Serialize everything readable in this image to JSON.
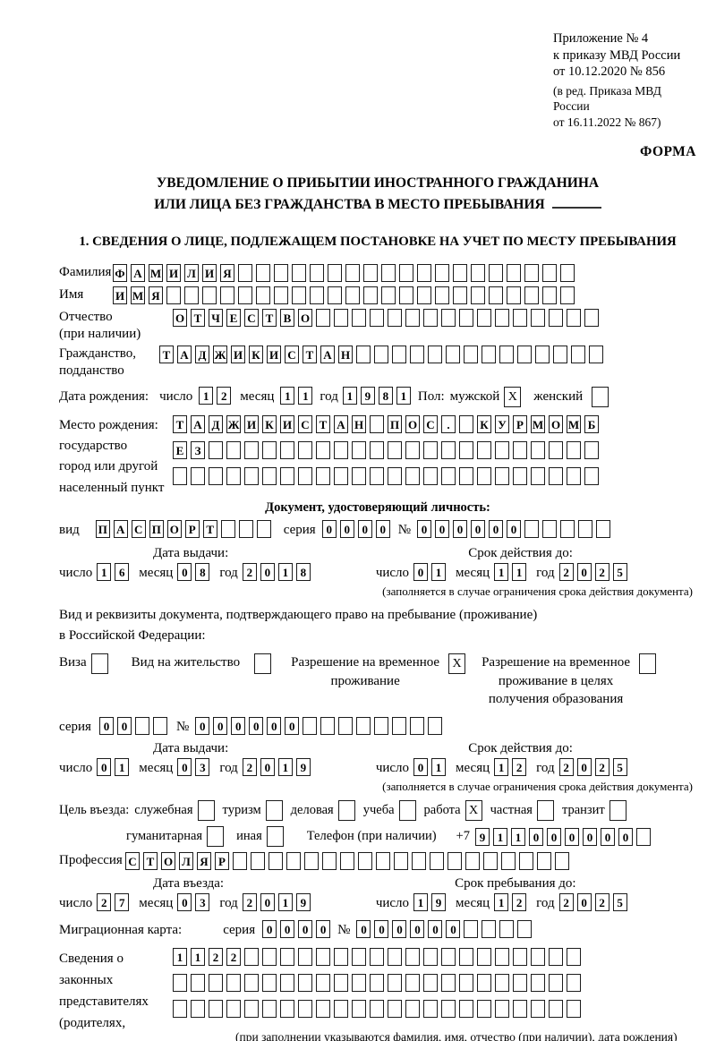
{
  "header": {
    "appendix": "Приложение № 4\nк приказу МВД России\nот 10.12.2020 № 856",
    "edition": "(в ред. Приказа МВД России\nот 16.11.2022 № 867)",
    "form_label": "ФОРМА"
  },
  "title": {
    "line1": "УВЕДОМЛЕНИЕ О ПРИБЫТИИ ИНОСТРАННОГО ГРАЖДАНИНА",
    "line2": "ИЛИ ЛИЦА БЕЗ ГРАЖДАНСТВА В МЕСТО ПРЕБЫВАНИЯ"
  },
  "section1": {
    "heading": "1. СВЕДЕНИЯ О ЛИЦЕ, ПОДЛЕЖАЩЕМ ПОСТАНОВКЕ НА УЧЕТ ПО МЕСТУ ПРЕБЫВАНИЯ"
  },
  "date_words": {
    "day": "число",
    "month": "месяц",
    "year": "год"
  },
  "fields": {
    "surname": {
      "label": "Фамилия",
      "value": "ФАМИЛИЯ",
      "cells": 26
    },
    "given_name": {
      "label": "Имя",
      "value": "ИМЯ",
      "cells": 26
    },
    "patronymic": {
      "label": "Отчество\n(при наличии)",
      "value": "ОТЧЕСТВО",
      "cells": 24
    },
    "citizenship": {
      "label": "Гражданство,\nподданство",
      "value": "ТАДЖИКИСТАН",
      "cells": 25
    },
    "birth_date": {
      "label": "Дата рождения:",
      "day": {
        "value": "12",
        "cells": 2
      },
      "month": {
        "value": "11",
        "cells": 2
      },
      "year": {
        "value": "1981",
        "cells": 4
      }
    },
    "sex": {
      "label": "Пол:",
      "male_label": "мужской",
      "male_checked": "X",
      "female_label": "женский",
      "female_checked": ""
    },
    "birth_place": {
      "label": "Место рождения:\nгосударство\nгород или другой\nнаселенный пункт",
      "rows": [
        {
          "value": "ТАДЖИКИСТАН ПОС. КУРМОМБ",
          "cells": 24
        },
        {
          "value": "ЕЗ",
          "cells": 24
        },
        {
          "value": "",
          "cells": 24
        }
      ]
    }
  },
  "identity_doc": {
    "heading": "Документ, удостоверяющий личность:",
    "kind": {
      "label": "вид",
      "value": "ПАСПОРТ",
      "cells": 10
    },
    "series": {
      "label": "серия",
      "value": "0000",
      "cells": 4
    },
    "number": {
      "label": "№",
      "value": "000000",
      "cells": 11
    },
    "issue_heading": "Дата выдачи:",
    "issue": {
      "day": {
        "value": "16",
        "cells": 2
      },
      "month": {
        "value": "08",
        "cells": 2
      },
      "year": {
        "value": "2018",
        "cells": 4
      }
    },
    "valid_heading": "Срок действия до:",
    "valid": {
      "day": {
        "value": "01",
        "cells": 2
      },
      "month": {
        "value": "11",
        "cells": 2
      },
      "year": {
        "value": "2025",
        "cells": 4
      }
    },
    "note": "(заполняется в случае ограничения срока действия документа)"
  },
  "residence_doc": {
    "intro": "Вид и реквизиты документа, подтверждающего право на пребывание (проживание)\nв Российской Федерации:",
    "options": [
      {
        "label": "Виза",
        "checked": ""
      },
      {
        "label": "Вид на жительство",
        "checked": ""
      },
      {
        "label": "Разрешение на временное\nпроживание",
        "checked": "X"
      },
      {
        "label": "Разрешение на временное\nпроживание в целях\nполучения образования",
        "checked": ""
      }
    ],
    "series": {
      "label": "серия",
      "value": "00",
      "cells": 4
    },
    "number": {
      "label": "№",
      "value": "000000",
      "cells": 14
    },
    "issue_heading": "Дата выдачи:",
    "issue": {
      "day": {
        "value": "01",
        "cells": 2
      },
      "month": {
        "value": "03",
        "cells": 2
      },
      "year": {
        "value": "2019",
        "cells": 4
      }
    },
    "valid_heading": "Срок действия до:",
    "valid": {
      "day": {
        "value": "01",
        "cells": 2
      },
      "month": {
        "value": "12",
        "cells": 2
      },
      "year": {
        "value": "2025",
        "cells": 4
      }
    },
    "note": "(заполняется в случае ограничения срока действия документа)"
  },
  "visit": {
    "label": "Цель въезда:",
    "purposes": [
      {
        "label": "служебная",
        "checked": ""
      },
      {
        "label": "туризм",
        "checked": ""
      },
      {
        "label": "деловая",
        "checked": ""
      },
      {
        "label": "учеба",
        "checked": ""
      },
      {
        "label": "работа",
        "checked": "X"
      },
      {
        "label": "частная",
        "checked": ""
      },
      {
        "label": "транзит",
        "checked": ""
      }
    ],
    "purposes2": [
      {
        "label": "гуманитарная",
        "checked": ""
      },
      {
        "label": "иная",
        "checked": ""
      }
    ],
    "phone": {
      "label": "Телефон (при наличии)",
      "prefix": "+7",
      "value": "911000000",
      "cells": 10
    }
  },
  "profession": {
    "label": "Профессия",
    "value": "СТОЛЯР",
    "cells": 25
  },
  "entry": {
    "heading": "Дата въезда:",
    "date": {
      "day": {
        "value": "27",
        "cells": 2
      },
      "month": {
        "value": "03",
        "cells": 2
      },
      "year": {
        "value": "2019",
        "cells": 4
      }
    }
  },
  "stay": {
    "heading": "Срок пребывания до:",
    "date": {
      "day": {
        "value": "19",
        "cells": 2
      },
      "month": {
        "value": "12",
        "cells": 2
      },
      "year": {
        "value": "2025",
        "cells": 4
      }
    }
  },
  "migration_card": {
    "label": "Миграционная карта:",
    "series": {
      "label": "серия",
      "value": "0000",
      "cells": 4
    },
    "number": {
      "label": "№",
      "value": "000000",
      "cells": 10
    }
  },
  "representatives": {
    "label": "Сведения о\nзаконных\nпредставителях\n(родителях,\nусыновителях,\nпопечителях)",
    "rows": [
      {
        "value": "1122",
        "cells": 23
      },
      {
        "value": "",
        "cells": 23
      },
      {
        "value": "",
        "cells": 23
      }
    ],
    "note": "(при заполнении указываются фамилия, имя, отчество (при наличии), дата рождения)"
  }
}
